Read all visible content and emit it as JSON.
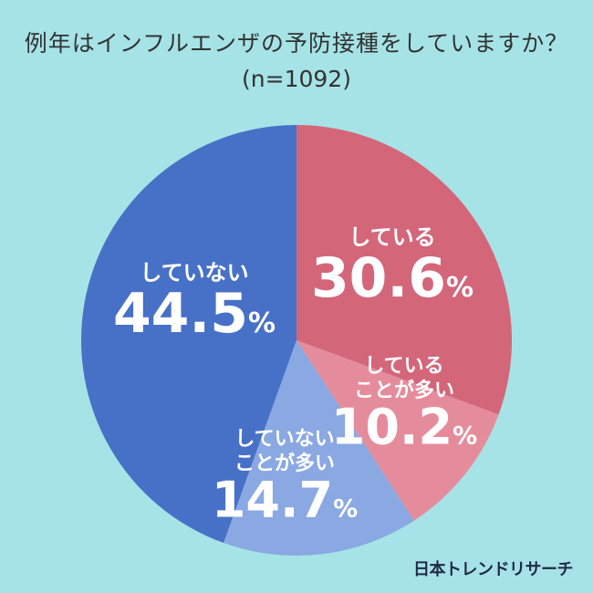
{
  "title": "例年はインフルエンザの予防接種をしていますか？",
  "subtitle": "(n=1092)",
  "credit": "日本トレンドリサーチ",
  "chart_data": {
    "type": "pie",
    "unit": "%",
    "slices": [
      {
        "label": "している",
        "value": 30.6,
        "color": "#d4667a"
      },
      {
        "label": "していることが多い",
        "value": 10.2,
        "color": "#e58c9c"
      },
      {
        "label": "していないことが多い",
        "value": 14.7,
        "color": "#8aa8e2"
      },
      {
        "label": "していない",
        "value": 44.5,
        "color": "#4771c6"
      }
    ],
    "slice_text": [
      {
        "lines": [
          "している"
        ],
        "value": "30.6"
      },
      {
        "lines": [
          "している",
          "ことが多い"
        ],
        "value": "10.2"
      },
      {
        "lines": [
          "していない",
          "ことが多い"
        ],
        "value": "14.7"
      },
      {
        "lines": [
          "していない"
        ],
        "value": "44.5"
      }
    ]
  }
}
